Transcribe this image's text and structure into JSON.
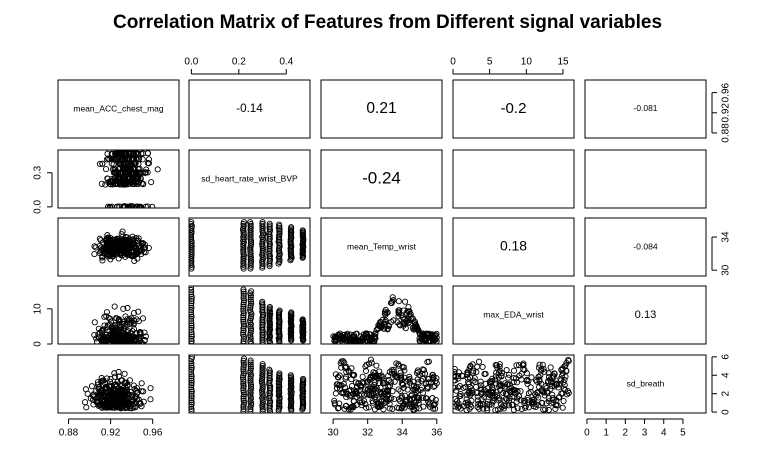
{
  "chart_data": {
    "type": "scatter",
    "title": "Correlation Matrix of Features from Different signal variables",
    "variables": [
      "mean_ACC_chest_mag",
      "sd_heart_rate_wrist_BVP",
      "mean_Temp_wrist",
      "max_EDA_wrist",
      "sd_breath"
    ],
    "correlations": [
      {
        "row": 0,
        "col": 1,
        "label": "-0.14"
      },
      {
        "row": 0,
        "col": 2,
        "label": "0.21"
      },
      {
        "row": 0,
        "col": 3,
        "label": "-0.2"
      },
      {
        "row": 0,
        "col": 4,
        "label": "-0.081"
      },
      {
        "row": 1,
        "col": 2,
        "label": "-0.24"
      },
      {
        "row": 1,
        "col": 3,
        "label": ""
      },
      {
        "row": 1,
        "col": 4,
        "label": ""
      },
      {
        "row": 2,
        "col": 3,
        "label": "0.18"
      },
      {
        "row": 2,
        "col": 4,
        "label": "-0.084"
      },
      {
        "row": 3,
        "col": 4,
        "label": "0.13"
      }
    ],
    "axis_ranges": [
      [
        0.87,
        0.985
      ],
      [
        -0.01,
        0.5
      ],
      [
        29.3,
        36.3
      ],
      [
        0,
        16.5
      ],
      [
        -0.1,
        6.2
      ]
    ],
    "ticks": [
      {
        "values": [
          0.88,
          0.92,
          0.96
        ],
        "labels": [
          "0.88",
          "0.92",
          "0.96"
        ]
      },
      {
        "values": [
          0.0,
          0.2,
          0.4,
          0.3
        ],
        "labels": [
          "0.0",
          "0.2",
          "0.4",
          "0.3"
        ]
      },
      {
        "values": [
          30,
          32,
          34,
          36
        ],
        "labels": [
          "30",
          "32",
          "34",
          "36"
        ]
      },
      {
        "values": [
          0,
          5,
          10,
          15
        ],
        "labels": [
          "0",
          "5",
          "10",
          "15"
        ]
      },
      {
        "values": [
          0,
          1,
          2,
          3,
          4,
          5,
          6
        ],
        "labels": [
          "0",
          "1",
          "2",
          "3",
          "4",
          "5",
          "6"
        ]
      }
    ],
    "bottom_axes": [
      {
        "col": 0,
        "values": [
          0.88,
          0.92,
          0.96
        ],
        "labels": [
          "0.88",
          "0.92",
          "0.96"
        ]
      },
      {
        "col": 2,
        "values": [
          30,
          32,
          34,
          36
        ],
        "labels": [
          "30",
          "32",
          "34",
          "36"
        ]
      },
      {
        "col": 4,
        "values": [
          0,
          1,
          2,
          3,
          4,
          5
        ],
        "labels": [
          "0",
          "1",
          "2",
          "3",
          "4",
          "5"
        ]
      }
    ],
    "top_axes": [
      {
        "col": 1,
        "values": [
          0.0,
          0.2,
          0.4
        ],
        "labels": [
          "0.0",
          "0.2",
          "0.4"
        ]
      },
      {
        "col": 3,
        "values": [
          0,
          5,
          10,
          15
        ],
        "labels": [
          "0",
          "5",
          "10",
          "15"
        ]
      }
    ],
    "left_axes": [
      {
        "row": 1,
        "values": [
          0.0,
          0.3
        ],
        "labels": [
          "0.0",
          "0.3"
        ]
      },
      {
        "row": 3,
        "values": [
          0,
          10
        ],
        "labels": [
          "0",
          "10"
        ]
      }
    ],
    "right_axes": [
      {
        "row": 0,
        "values": [
          0.88,
          0.92,
          0.96
        ],
        "labels": [
          "0.88",
          "0.92",
          "0.96"
        ]
      },
      {
        "row": 2,
        "values": [
          30,
          34
        ],
        "labels": [
          "30",
          "34"
        ]
      },
      {
        "row": 4,
        "values": [
          0,
          2,
          4,
          6
        ],
        "labels": [
          "0",
          "2",
          "4",
          "6"
        ]
      }
    ],
    "grid": false,
    "legend": "none"
  }
}
